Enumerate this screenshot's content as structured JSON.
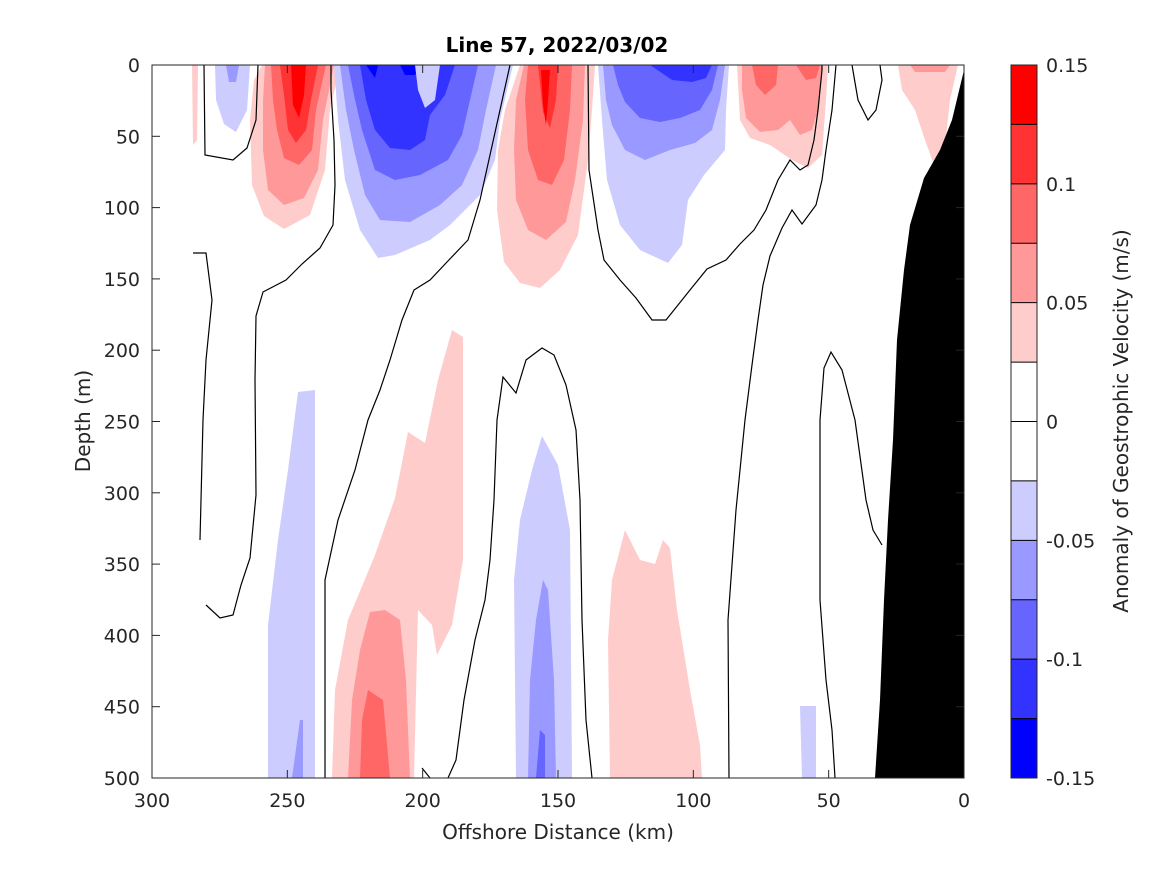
{
  "chart_data": {
    "type": "heatmap",
    "title": "Line 57, 2022/03/02",
    "xlabel": "Offshore Distance (km)",
    "ylabel": "Depth (m)",
    "colorbar_label": "Anomaly of Geostrophic Velocity (m/s)",
    "xlim": [
      300,
      0
    ],
    "ylim": [
      0,
      500
    ],
    "x_ticks": [
      "300",
      "250",
      "200",
      "150",
      "100",
      "50",
      "0"
    ],
    "y_ticks": [
      "0",
      "50",
      "100",
      "150",
      "200",
      "250",
      "300",
      "350",
      "400",
      "450",
      "500"
    ],
    "colorbar_ticks": [
      "0.15",
      "0.1",
      "0.05",
      "0",
      "-0.05",
      "-0.1",
      "-0.15"
    ],
    "colorbar_range": [
      -0.15,
      0.15
    ],
    "contour_levels": [
      -0.15,
      -0.125,
      -0.1,
      -0.075,
      -0.05,
      -0.025,
      0.025,
      0.05,
      0.075,
      0.1,
      0.125,
      0.15
    ],
    "level_colors": [
      "#0000ff",
      "#3333ff",
      "#6666ff",
      "#9999ff",
      "#ccccff",
      "#ffffff",
      "#ffcccc",
      "#ff9999",
      "#ff6666",
      "#ff3333",
      "#ff0000"
    ],
    "zero_contour_color": "#000000",
    "bathymetry_color": "#000000",
    "features": [
      {
        "kind": "positive",
        "x_center": 245,
        "depth_top": 0,
        "depth_bottom": 120,
        "peak": 0.13
      },
      {
        "kind": "negative",
        "x_center": 215,
        "depth_top": 0,
        "depth_bottom": 135,
        "peak": -0.13
      },
      {
        "kind": "positive",
        "x_center": 155,
        "depth_top": 0,
        "depth_bottom": 155,
        "peak": 0.13
      },
      {
        "kind": "negative",
        "x_center": 113,
        "depth_top": 0,
        "depth_bottom": 140,
        "peak": -0.1
      },
      {
        "kind": "positive",
        "x_center": 68,
        "depth_top": 0,
        "depth_bottom": 70,
        "peak": 0.08
      },
      {
        "kind": "positive",
        "x_center": 10,
        "depth_top": 0,
        "depth_bottom": 65,
        "peak": 0.05
      },
      {
        "kind": "negative",
        "x_center": 248,
        "depth_top": 230,
        "depth_bottom": 500,
        "peak": -0.06
      },
      {
        "kind": "positive",
        "x_center": 212,
        "depth_top": 190,
        "depth_bottom": 500,
        "peak": 0.1
      },
      {
        "kind": "negative",
        "x_center": 156,
        "depth_top": 265,
        "depth_bottom": 500,
        "peak": -0.07
      },
      {
        "kind": "positive",
        "x_center": 115,
        "depth_top": 320,
        "depth_bottom": 500,
        "peak": 0.04
      }
    ]
  }
}
